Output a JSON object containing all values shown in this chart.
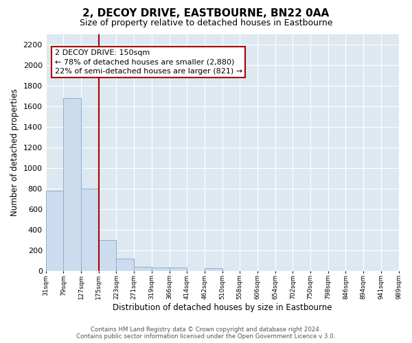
{
  "title": "2, DECOY DRIVE, EASTBOURNE, BN22 0AA",
  "subtitle": "Size of property relative to detached houses in Eastbourne",
  "xlabel": "Distribution of detached houses by size in Eastbourne",
  "ylabel": "Number of detached properties",
  "bar_values": [
    780,
    1680,
    800,
    300,
    115,
    35,
    28,
    28,
    0,
    25,
    0,
    0,
    0,
    0,
    0,
    0,
    0,
    0,
    0,
    0
  ],
  "tick_labels": [
    "31sqm",
    "79sqm",
    "127sqm",
    "175sqm",
    "223sqm",
    "271sqm",
    "319sqm",
    "366sqm",
    "414sqm",
    "462sqm",
    "510sqm",
    "558sqm",
    "606sqm",
    "654sqm",
    "702sqm",
    "750sqm",
    "798sqm",
    "846sqm",
    "894sqm",
    "941sqm",
    "989sqm"
  ],
  "bar_color": "#ccdcee",
  "bar_edge_color": "#8ab0d0",
  "vline_color": "#aa0000",
  "annotation_title": "2 DECOY DRIVE: 150sqm",
  "annotation_line1": "← 78% of detached houses are smaller (2,880)",
  "annotation_line2": "22% of semi-detached houses are larger (821) →",
  "annotation_box_facecolor": "#ffffff",
  "annotation_box_edgecolor": "#aa0000",
  "ylim": [
    0,
    2300
  ],
  "yticks": [
    0,
    200,
    400,
    600,
    800,
    1000,
    1200,
    1400,
    1600,
    1800,
    2000,
    2200
  ],
  "figure_facecolor": "#ffffff",
  "plot_facecolor": "#dde8f0",
  "grid_color": "#ffffff",
  "footer1": "Contains HM Land Registry data © Crown copyright and database right 2024.",
  "footer2": "Contains public sector information licensed under the Open Government Licence v 3.0."
}
